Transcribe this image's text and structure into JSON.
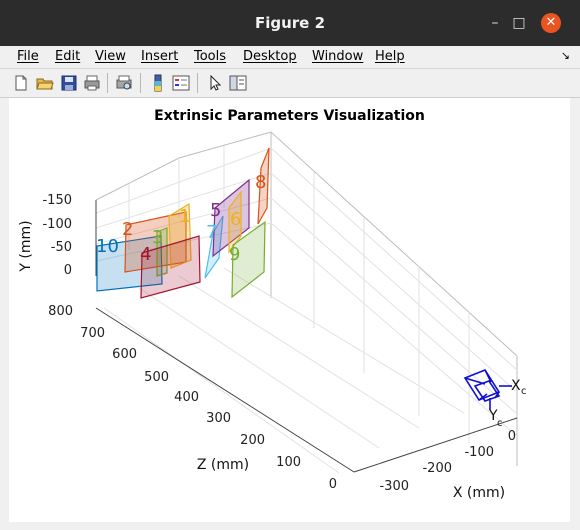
{
  "window": {
    "title": "Figure 2"
  },
  "menu": [
    {
      "label": "File"
    },
    {
      "label": "Edit"
    },
    {
      "label": "View"
    },
    {
      "label": "Insert"
    },
    {
      "label": "Tools"
    },
    {
      "label": "Desktop"
    },
    {
      "label": "Window"
    },
    {
      "label": "Help"
    }
  ],
  "toolbar": [
    "new-figure-icon",
    "open-file-icon",
    "save-icon",
    "print-icon",
    "print-preview-icon",
    "colorbar-icon",
    "legend-icon",
    "pointer-icon",
    "property-editor-icon"
  ],
  "chart_data": {
    "type": "3d-extrinsics",
    "title": "Extrinsic Parameters Visualization",
    "xlabel": "X (mm)",
    "ylabel": "Y (mm)",
    "zlabel": "Z (mm)",
    "x_ticks": [
      "-300",
      "-200",
      "-100",
      "0"
    ],
    "y_ticks": [
      "-150",
      "-100",
      "-50",
      "0"
    ],
    "z_ticks": [
      "0",
      "100",
      "200",
      "300",
      "400",
      "500",
      "600",
      "700",
      "800"
    ],
    "camera_axis_labels": [
      "X",
      "c",
      "Y",
      "c"
    ],
    "boards": [
      {
        "label": "1",
        "color": "#EDB120"
      },
      {
        "label": "2",
        "color": "#D95319"
      },
      {
        "label": "3",
        "color": "#77AC30"
      },
      {
        "label": "4",
        "color": "#A2142F"
      },
      {
        "label": "5",
        "color": "#7E2F8E"
      },
      {
        "label": "6",
        "color": "#EDB120"
      },
      {
        "label": "7",
        "color": "#4DBEEE"
      },
      {
        "label": "8",
        "color": "#D95319"
      },
      {
        "label": "9",
        "color": "#77AC30"
      },
      {
        "label": "10",
        "color": "#0072BD"
      }
    ],
    "grid": true
  }
}
